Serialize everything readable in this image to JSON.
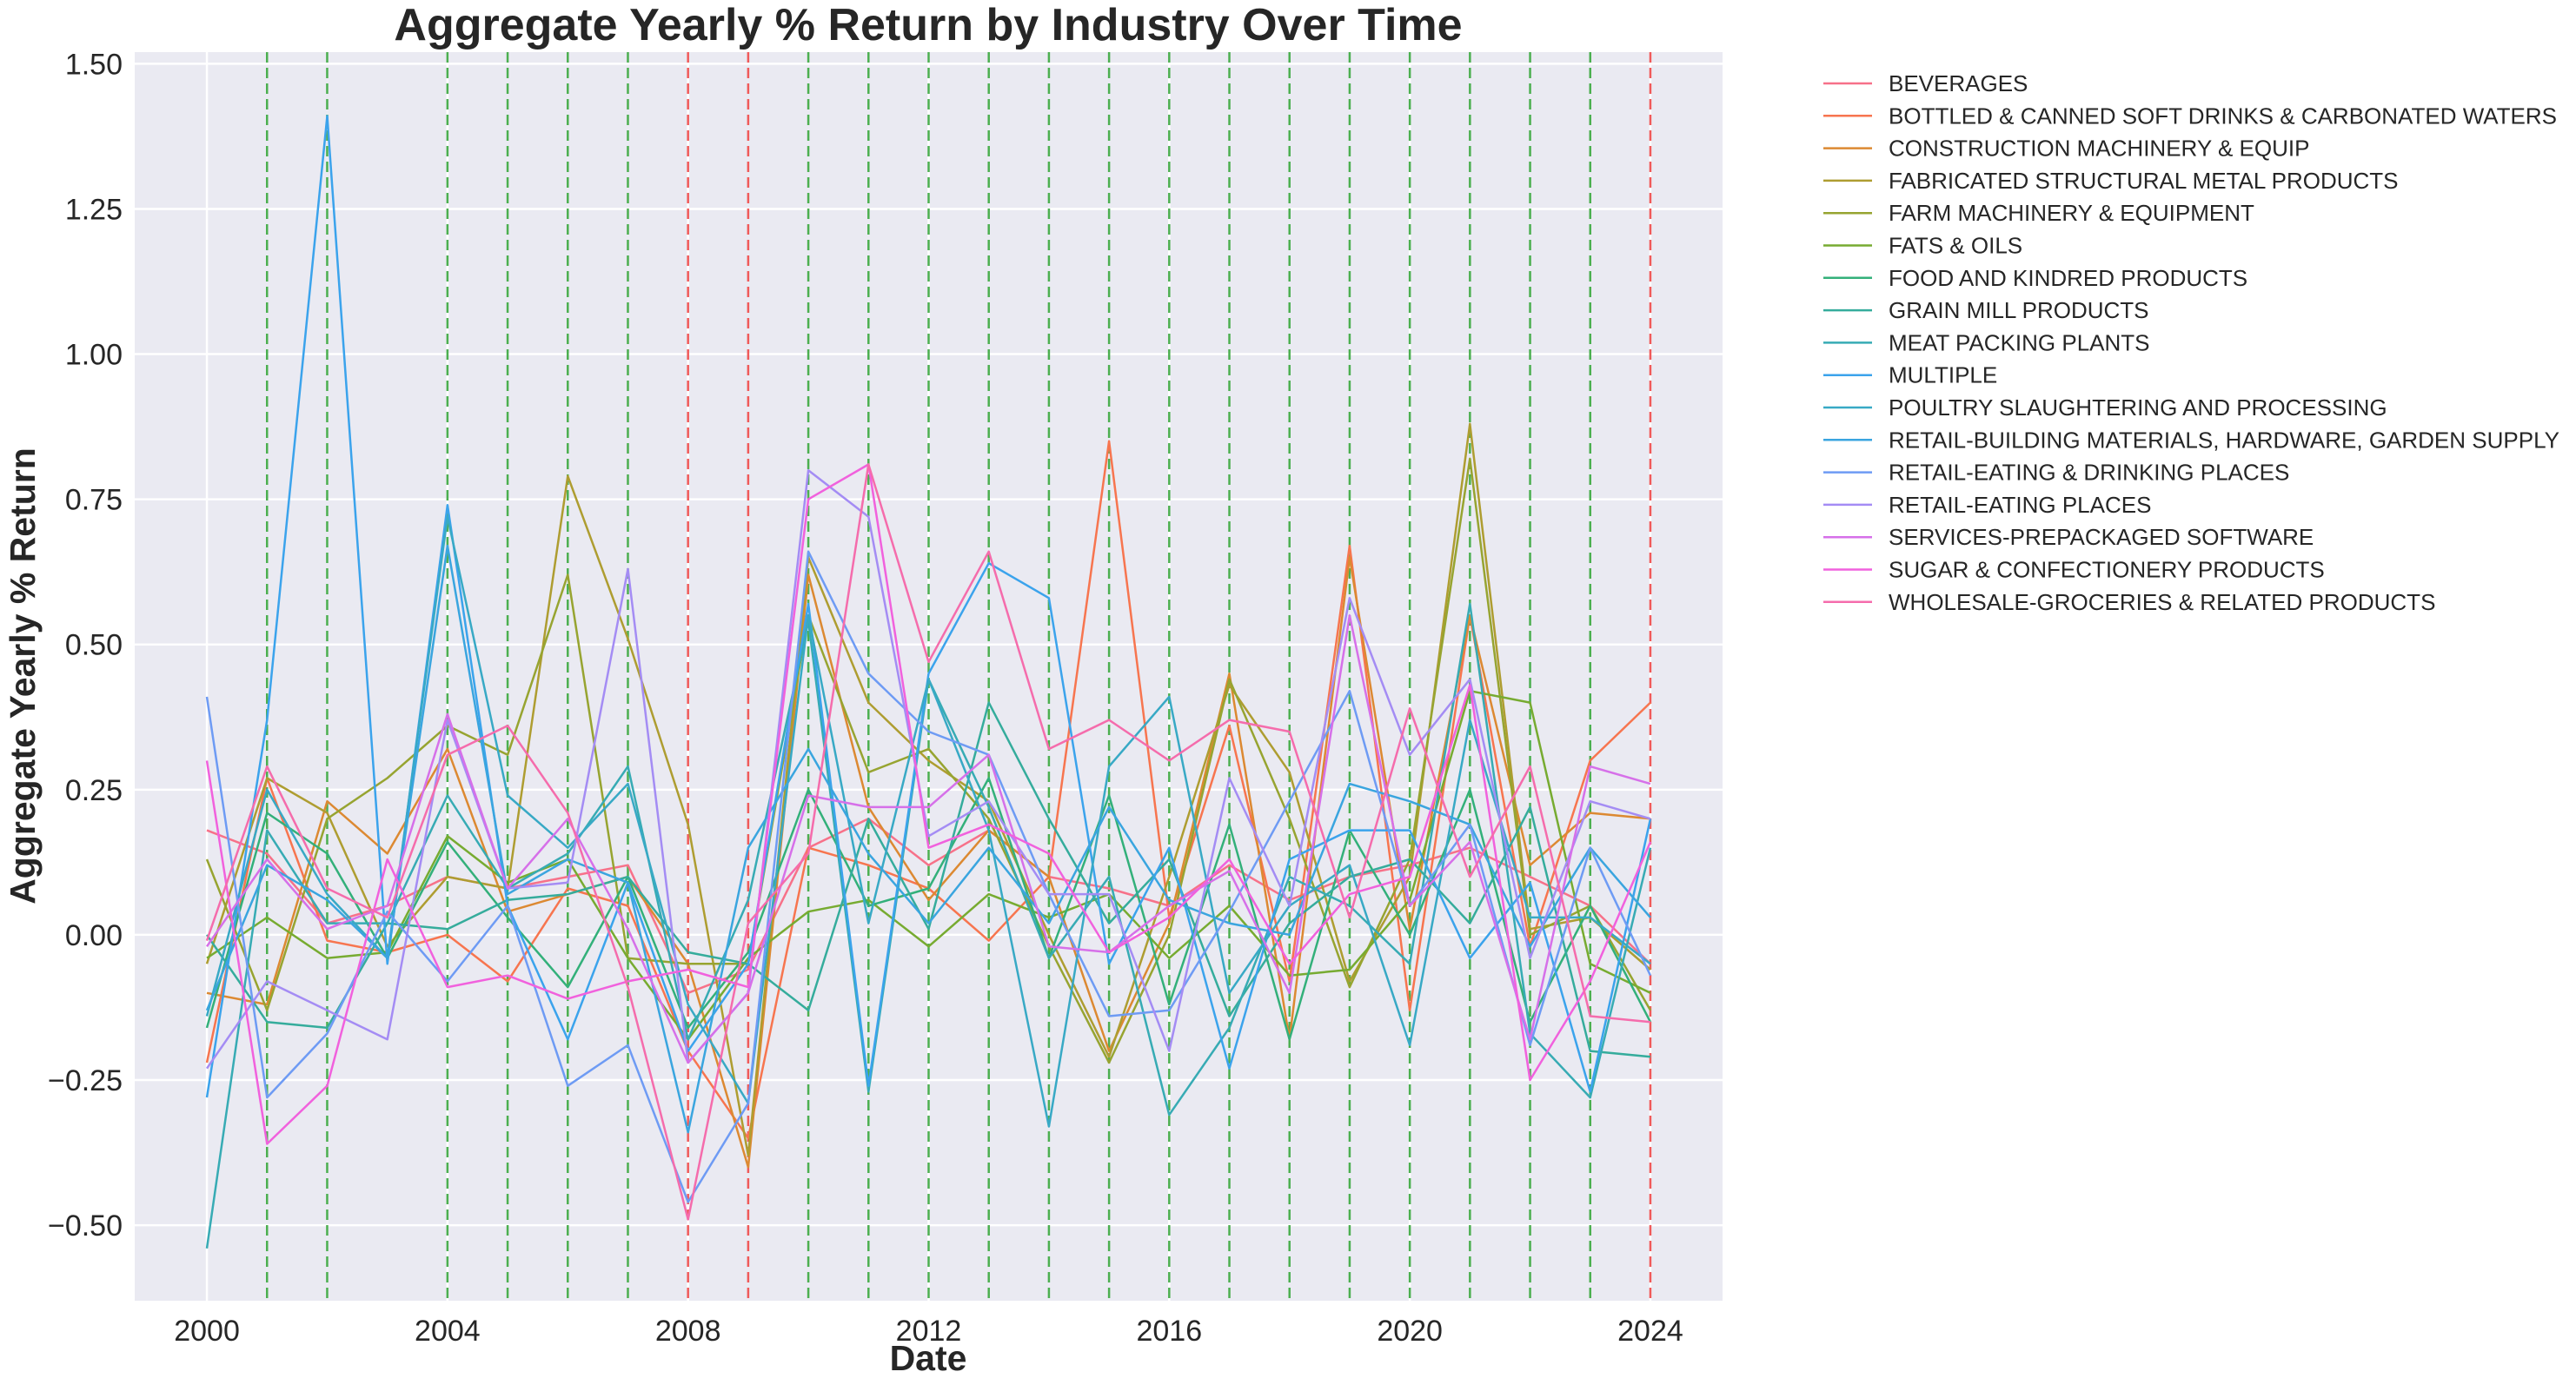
{
  "chart_data": {
    "type": "line",
    "title": "Aggregate Yearly % Return by Industry Over Time",
    "xlabel": "Date",
    "ylabel": "Aggregate Yearly % Return",
    "xlim": [
      1998.8,
      2025.2
    ],
    "ylim": [
      -0.63,
      1.52
    ],
    "x": [
      2000,
      2001,
      2002,
      2003,
      2004,
      2005,
      2006,
      2007,
      2008,
      2009,
      2010,
      2011,
      2012,
      2013,
      2014,
      2015,
      2016,
      2017,
      2018,
      2019,
      2020,
      2021,
      2022,
      2023,
      2024
    ],
    "xticks": [
      2000,
      2004,
      2008,
      2012,
      2016,
      2020,
      2024
    ],
    "xtick_labels": [
      "2000",
      "2004",
      "2008",
      "2012",
      "2016",
      "2020",
      "2024"
    ],
    "yticks": [
      -0.5,
      -0.25,
      0.0,
      0.25,
      0.5,
      0.75,
      1.0,
      1.25,
      1.5
    ],
    "ytick_labels": [
      "−0.50",
      "−0.25",
      "0.00",
      "0.25",
      "0.50",
      "0.75",
      "1.00",
      "1.25",
      "1.50"
    ],
    "grid": true,
    "background": "#eaeaf2",
    "legend_position": "outside-right",
    "vlines_green": [
      2001,
      2002,
      2004,
      2005,
      2006,
      2007,
      2010,
      2011,
      2012,
      2013,
      2014,
      2015,
      2016,
      2017,
      2018,
      2019,
      2020,
      2021,
      2022,
      2023
    ],
    "vlines_red": [
      2008,
      2009,
      2024
    ],
    "vline_colors": {
      "green": "#4caf50",
      "red": "#f05a5a"
    },
    "series": [
      {
        "name": "BEVERAGES",
        "color": "#f77189",
        "values": [
          0.18,
          0.14,
          0.02,
          0.05,
          0.1,
          0.08,
          0.1,
          0.12,
          -0.1,
          -0.06,
          0.15,
          0.2,
          0.12,
          0.18,
          0.1,
          0.08,
          0.05,
          0.12,
          0.06,
          0.1,
          0.12,
          0.15,
          0.1,
          0.05,
          -0.05
        ]
      },
      {
        "name": "BOTTLED & CANNED SOFT DRINKS & CARBONATED WATERS",
        "color": "#f7754f",
        "values": [
          -0.22,
          0.27,
          -0.01,
          -0.03,
          0.0,
          -0.08,
          0.08,
          0.05,
          -0.2,
          -0.35,
          0.15,
          0.12,
          0.08,
          -0.01,
          0.1,
          0.85,
          0.03,
          0.36,
          -0.08,
          0.67,
          -0.13,
          0.55,
          -0.02,
          0.3,
          0.4
        ]
      },
      {
        "name": "CONSTRUCTION MACHINERY & EQUIP",
        "color": "#dc8932",
        "values": [
          -0.1,
          -0.12,
          0.23,
          0.14,
          0.32,
          0.04,
          0.07,
          0.1,
          -0.05,
          -0.4,
          0.62,
          0.22,
          0.06,
          0.18,
          0.1,
          -0.2,
          0.02,
          0.45,
          -0.18,
          0.65,
          0.01,
          0.55,
          0.12,
          0.21,
          0.2
        ]
      },
      {
        "name": "FABRICATED STRUCTURAL METAL PRODUCTS",
        "color": "#ae9d31",
        "values": [
          -0.05,
          0.27,
          0.21,
          -0.02,
          0.1,
          0.08,
          0.79,
          0.51,
          0.19,
          -0.38,
          0.65,
          0.4,
          0.3,
          0.23,
          0.0,
          -0.21,
          0.1,
          0.43,
          0.28,
          -0.08,
          0.1,
          0.88,
          0.01,
          0.03,
          -0.06
        ]
      },
      {
        "name": "FARM MACHINERY & EQUIPMENT",
        "color": "#97a431",
        "values": [
          0.13,
          -0.13,
          0.2,
          0.27,
          0.36,
          0.31,
          0.62,
          -0.04,
          -0.05,
          -0.05,
          0.55,
          0.28,
          0.32,
          0.2,
          -0.02,
          -0.22,
          0.0,
          0.44,
          0.2,
          -0.09,
          0.13,
          0.82,
          0.0,
          0.05,
          -0.13
        ]
      },
      {
        "name": "FATS & OILS",
        "color": "#77ab31",
        "values": [
          -0.04,
          0.03,
          -0.04,
          -0.03,
          0.17,
          0.09,
          0.13,
          -0.04,
          -0.18,
          -0.04,
          0.04,
          0.06,
          -0.02,
          0.07,
          0.03,
          0.07,
          -0.04,
          0.05,
          -0.07,
          -0.06,
          0.06,
          0.42,
          0.4,
          -0.05,
          -0.1
        ]
      },
      {
        "name": "FOOD AND KINDRED PRODUCTS",
        "color": "#33b07a",
        "values": [
          -0.16,
          0.21,
          0.14,
          -0.04,
          0.16,
          0.03,
          -0.09,
          0.1,
          -0.16,
          -0.03,
          0.25,
          0.05,
          0.08,
          0.27,
          -0.04,
          0.24,
          -0.12,
          0.19,
          -0.18,
          0.18,
          0.0,
          0.25,
          -0.15,
          0.05,
          -0.15
        ]
      },
      {
        "name": "GRAIN MILL PRODUCTS",
        "color": "#35ac9c",
        "values": [
          0.0,
          -0.15,
          -0.16,
          0.02,
          0.01,
          0.06,
          0.07,
          0.1,
          -0.03,
          -0.05,
          -0.13,
          0.2,
          0.01,
          0.4,
          0.2,
          0.02,
          0.13,
          -0.14,
          0.02,
          0.1,
          0.13,
          0.02,
          0.22,
          -0.2,
          -0.21
        ]
      },
      {
        "name": "MEAT PACKING PLANTS",
        "color": "#37abb4",
        "values": [
          -0.54,
          0.18,
          0.02,
          0.02,
          0.24,
          0.08,
          0.14,
          0.29,
          -0.18,
          0.06,
          0.54,
          -0.27,
          0.44,
          0.22,
          -0.04,
          0.1,
          -0.31,
          -0.16,
          0.1,
          0.05,
          -0.05,
          0.57,
          -0.17,
          -0.28,
          0.15
        ]
      },
      {
        "name": "MULTIPLE",
        "color": "#3ba3ec",
        "values": [
          -0.28,
          0.37,
          1.41,
          -0.05,
          0.74,
          0.05,
          -0.18,
          0.09,
          -0.2,
          -0.05,
          0.57,
          -0.26,
          0.45,
          0.64,
          0.58,
          -0.05,
          0.15,
          -0.23,
          0.13,
          0.18,
          0.18,
          -0.04,
          0.09,
          -0.27,
          0.2
        ]
      },
      {
        "name": "POULTRY SLAUGHTERING AND PROCESSING",
        "color": "#38a9c5",
        "values": [
          -0.14,
          0.25,
          0.07,
          -0.04,
          0.72,
          0.24,
          0.15,
          0.26,
          -0.12,
          -0.29,
          0.55,
          0.02,
          0.44,
          0.18,
          -0.33,
          0.29,
          0.41,
          -0.1,
          0.05,
          0.12,
          -0.19,
          0.37,
          0.03,
          0.03,
          -0.05
        ]
      },
      {
        "name": "RETAIL-BUILDING MATERIALS, HARDWARE, GARDEN SUPPLY",
        "color": "#3aa5df",
        "values": [
          -0.13,
          0.12,
          0.06,
          -0.04,
          0.67,
          0.07,
          0.13,
          0.09,
          -0.34,
          0.15,
          0.32,
          0.14,
          0.02,
          0.15,
          0.02,
          0.22,
          0.06,
          0.02,
          0.0,
          0.26,
          0.23,
          0.19,
          -0.02,
          0.15,
          0.03
        ]
      },
      {
        "name": "RETAIL-EATING & DRINKING PLACES",
        "color": "#6e9bf4",
        "values": [
          0.41,
          -0.28,
          -0.17,
          0.04,
          -0.08,
          0.05,
          -0.26,
          -0.19,
          -0.46,
          -0.29,
          0.66,
          0.45,
          0.35,
          0.31,
          0.07,
          -0.14,
          -0.13,
          0.04,
          0.23,
          0.42,
          0.05,
          0.19,
          -0.19,
          0.15,
          -0.07
        ]
      },
      {
        "name": "RETAIL-EATING PLACES",
        "color": "#a48cf4",
        "values": [
          -0.23,
          -0.08,
          -0.13,
          -0.18,
          0.37,
          0.08,
          0.09,
          0.63,
          -0.22,
          -0.1,
          0.8,
          0.72,
          0.17,
          0.23,
          0.07,
          0.07,
          -0.2,
          0.27,
          0.05,
          0.58,
          0.31,
          0.44,
          -0.04,
          0.23,
          0.2
        ]
      },
      {
        "name": "SERVICES-PREPACKAGED SOFTWARE",
        "color": "#d670e9",
        "values": [
          -0.02,
          0.13,
          0.01,
          0.05,
          0.38,
          0.08,
          0.2,
          0.01,
          -0.22,
          -0.1,
          0.24,
          0.22,
          0.22,
          0.31,
          -0.02,
          -0.03,
          0.05,
          0.11,
          -0.1,
          0.55,
          0.05,
          0.16,
          -0.18,
          0.29,
          0.26
        ]
      },
      {
        "name": "SUGAR & CONFECTIONERY PRODUCTS",
        "color": "#f161dd",
        "values": [
          0.3,
          -0.36,
          -0.26,
          0.13,
          -0.09,
          -0.07,
          -0.11,
          -0.08,
          -0.06,
          -0.09,
          0.75,
          0.81,
          0.15,
          0.19,
          0.14,
          -0.03,
          0.03,
          0.13,
          -0.05,
          0.07,
          0.1,
          0.43,
          -0.25,
          -0.08,
          0.16
        ]
      },
      {
        "name": "WHOLESALE-GROCERIES & RELATED PRODUCTS",
        "color": "#f56cac",
        "values": [
          -0.01,
          0.29,
          0.08,
          0.03,
          0.31,
          0.36,
          0.21,
          -0.09,
          -0.49,
          0.02,
          0.14,
          0.81,
          0.47,
          0.66,
          0.32,
          0.37,
          0.3,
          0.37,
          0.35,
          0.03,
          0.39,
          0.1,
          0.29,
          -0.14,
          -0.15
        ]
      }
    ]
  }
}
